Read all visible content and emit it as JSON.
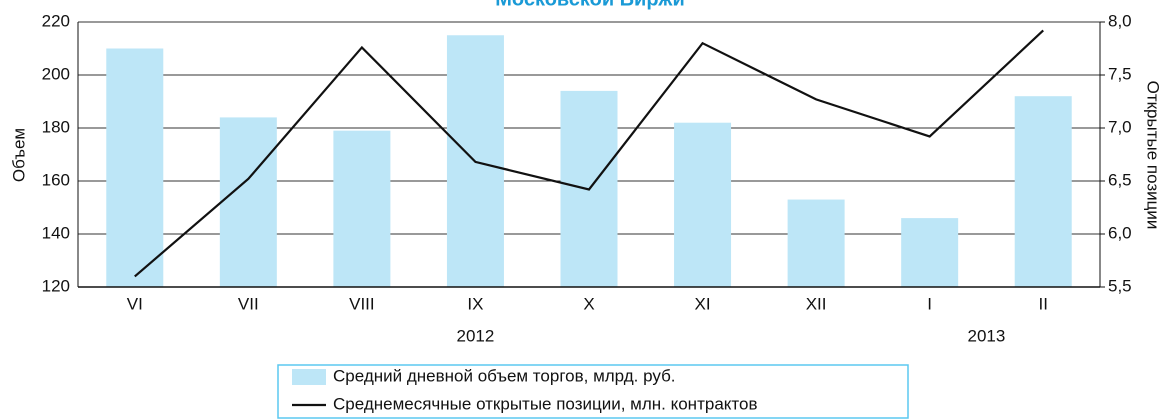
{
  "chart_data": {
    "type": "bar_line",
    "title": "Московской Биржи",
    "categories": [
      "VI",
      "VII",
      "VIII",
      "IX",
      "X",
      "XI",
      "XII",
      "I",
      "II"
    ],
    "group_labels": [
      "2012",
      "2013"
    ],
    "y_label": "Объем",
    "y2_label": "Открытые позиции",
    "ylim": [
      120,
      220
    ],
    "yticks": [
      120,
      140,
      160,
      180,
      200,
      220
    ],
    "y2lim": [
      5.5,
      8.0
    ],
    "y2ticks": [
      {
        "value": 5.5,
        "label": "5,5"
      },
      {
        "value": 6.0,
        "label": "6,0"
      },
      {
        "value": 6.5,
        "label": "6,5"
      },
      {
        "value": 7.0,
        "label": "7,0"
      },
      {
        "value": 7.5,
        "label": "7,5"
      },
      {
        "value": 8.0,
        "label": "8,0"
      }
    ],
    "grid": true,
    "series": [
      {
        "name": "Средний дневной объем торгов, млрд. руб.",
        "type": "bar",
        "color": "#bde6f7",
        "values": [
          210,
          184,
          179,
          215,
          194,
          182,
          153,
          146,
          192
        ]
      },
      {
        "name": "Среднемесячные открытые позиции, млн. контрактов",
        "type": "line",
        "axis": "y2",
        "color": "#111111",
        "values": [
          5.6,
          6.52,
          7.76,
          6.68,
          6.42,
          7.8,
          7.27,
          6.92,
          7.92
        ]
      }
    ]
  }
}
